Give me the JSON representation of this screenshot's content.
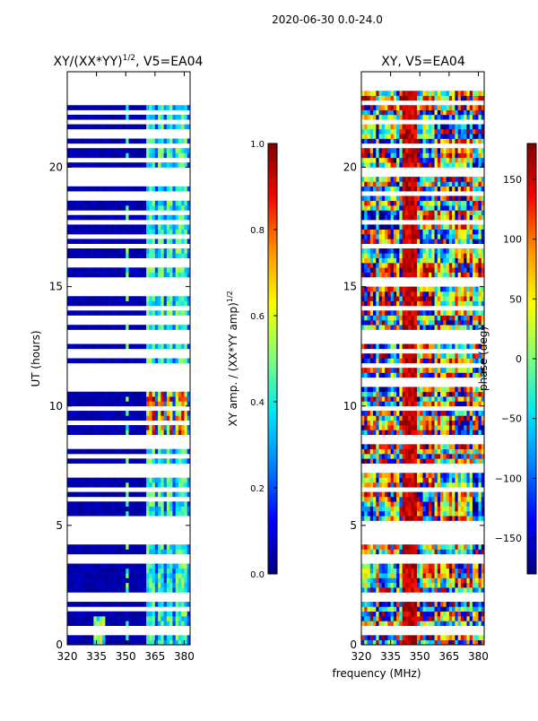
{
  "suptitle": "2020-06-30 0.0-24.0",
  "colormap": [
    "#00007f",
    "#0000ff",
    "#0080ff",
    "#00e5f8",
    "#7dff7a",
    "#f9ff00",
    "#ff9400",
    "#f10800",
    "#7f0000"
  ],
  "chart_data": [
    {
      "type": "heatmap",
      "title_main": "XY/(XX*YY)",
      "title_sup": "1/2",
      "title_tail": ", V5=EA04",
      "xlim": [
        320,
        383
      ],
      "ylim": [
        0,
        24
      ],
      "data_ymax": 23.2,
      "xticks": [
        320,
        335,
        350,
        365,
        380
      ],
      "xtick_labels": [
        "320",
        "335",
        "350",
        "365",
        "380"
      ],
      "yticks": [
        0,
        5,
        10,
        15,
        20
      ],
      "ytick_labels": [
        "0",
        "5",
        "10",
        "15",
        "20"
      ],
      "ylabel": "UT (hours)",
      "xlabel": "",
      "mode": "amp",
      "bright_channels_mhz": [
        [
          361,
          365
        ],
        [
          366,
          370
        ],
        [
          370.5,
          373.5
        ],
        [
          375,
          378
        ],
        [
          379,
          381
        ]
      ],
      "bright_time_range_hours": [
        8.5,
        11.2
      ],
      "missing_rows_hours": [
        0.5,
        1.4,
        1.9,
        3.4,
        3.5,
        4.2,
        4.3,
        4.5,
        4.8,
        4.9,
        5.0,
        5.1,
        6.0,
        6.4,
        7.0,
        7.3,
        7.8,
        8.2,
        8.5,
        9.2,
        9.8,
        10.7,
        10.9,
        11.3,
        11.6,
        12.0,
        12.2,
        12.6,
        12.7,
        12.9,
        13.5,
        14.0,
        14.7,
        15.1,
        15.9,
        16.6,
        17.0,
        17.6,
        18.0,
        18.6,
        18.8,
        19.3,
        19.7,
        20.2,
        20.8,
        21.3,
        21.8,
        22.2,
        22.6,
        22.9
      ],
      "colorbar": {
        "label": "XY amp. / (XX*YY amp)",
        "label_sup": "1/2",
        "range": [
          0.0,
          1.0
        ],
        "ticks": [
          0.0,
          0.2,
          0.4,
          0.6,
          0.8,
          1.0
        ],
        "tick_labels": [
          "0.0",
          "0.2",
          "0.4",
          "0.6",
          "0.8",
          "1.0"
        ]
      }
    },
    {
      "type": "heatmap",
      "title_main": "XY, V5=EA04",
      "title_sup": "",
      "title_tail": "",
      "xlim": [
        320,
        383
      ],
      "ylim": [
        0,
        24
      ],
      "data_ymax": 23.2,
      "xticks": [
        320,
        335,
        350,
        365,
        380
      ],
      "xtick_labels": [
        "320",
        "335",
        "350",
        "365",
        "380"
      ],
      "yticks": [
        0,
        5,
        10,
        15,
        20
      ],
      "ytick_labels": [
        "0",
        "5",
        "10",
        "15",
        "20"
      ],
      "ylabel": "",
      "xlabel": "frequency (MHz)",
      "mode": "phase",
      "missing_rows_hours": [
        0.5,
        1.9,
        3.4,
        3.5,
        4.2,
        4.5,
        4.8,
        5.0,
        6.4,
        7.3,
        8.5,
        9.8,
        10.9,
        11.6,
        12.2,
        12.6,
        12.9,
        14.0,
        15.1,
        16.6,
        17.6,
        18.8,
        19.7,
        20.8,
        21.8,
        22.6
      ],
      "colorbar": {
        "label": "phase (deg)",
        "label_sup": "",
        "range": [
          -180,
          180
        ],
        "ticks": [
          -150,
          -100,
          -50,
          0,
          50,
          100,
          150
        ],
        "tick_labels": [
          "−150",
          "−100",
          "−50",
          "0",
          "50",
          "100",
          "150"
        ]
      }
    }
  ]
}
